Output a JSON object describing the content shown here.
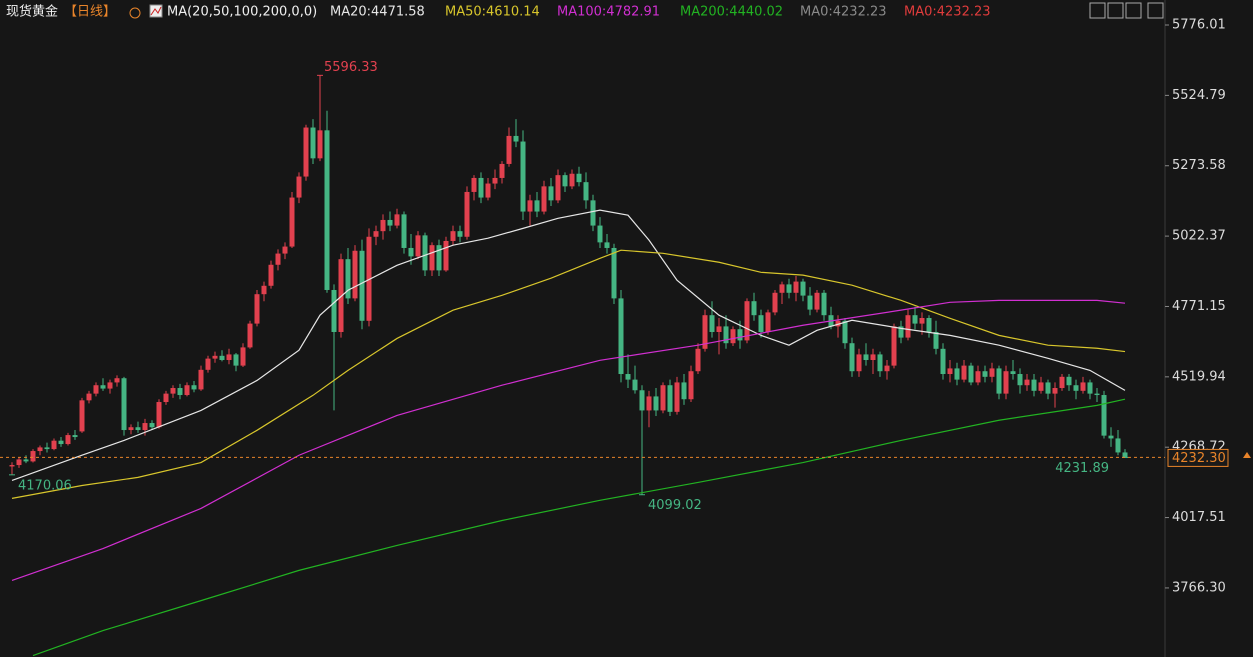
{
  "chart_data": {
    "type": "candlestick",
    "title": "现货黄金",
    "period": "【日线】",
    "indicator": "MA(20,50,100,200,0,0)",
    "up_color": "#e2414f",
    "down_color": "#45b583",
    "ylim": [
      3519.7,
      5865.3
    ],
    "yticks": [
      5776.01,
      5524.79,
      5273.58,
      5022.37,
      4771.15,
      4519.94,
      4268.72,
      4017.51,
      {
        "value": 3766.3,
        "label": "3766.30"
      }
    ],
    "last_price": {
      "value": 4232.3,
      "label": "4232.30"
    },
    "ohlc": [
      [
        4200,
        4215,
        4170.06,
        4205
      ],
      [
        4205,
        4232,
        4195,
        4225
      ],
      [
        4225,
        4240,
        4212,
        4218
      ],
      [
        4218,
        4262,
        4214,
        4255
      ],
      [
        4255,
        4275,
        4240,
        4268
      ],
      [
        4268,
        4285,
        4250,
        4262
      ],
      [
        4262,
        4300,
        4258,
        4292
      ],
      [
        4292,
        4305,
        4270,
        4280
      ],
      [
        4280,
        4320,
        4275,
        4312
      ],
      [
        4312,
        4330,
        4295,
        4305
      ],
      [
        4325,
        4445,
        4320,
        4436
      ],
      [
        4436,
        4470,
        4425,
        4460
      ],
      [
        4460,
        4500,
        4450,
        4490
      ],
      [
        4490,
        4515,
        4470,
        4478
      ],
      [
        4478,
        4510,
        4460,
        4500
      ],
      [
        4500,
        4525,
        4485,
        4515
      ],
      [
        4515,
        4520,
        4310,
        4330
      ],
      [
        4330,
        4350,
        4315,
        4340
      ],
      [
        4340,
        4360,
        4320,
        4330
      ],
      [
        4330,
        4370,
        4310,
        4355
      ],
      [
        4355,
        4365,
        4330,
        4340
      ],
      [
        4340,
        4440,
        4335,
        4430
      ],
      [
        4430,
        4470,
        4420,
        4460
      ],
      [
        4460,
        4490,
        4445,
        4480
      ],
      [
        4480,
        4495,
        4440,
        4455
      ],
      [
        4455,
        4500,
        4450,
        4490
      ],
      [
        4490,
        4505,
        4465,
        4475
      ],
      [
        4475,
        4560,
        4470,
        4545
      ],
      [
        4545,
        4595,
        4535,
        4585
      ],
      [
        4585,
        4610,
        4570,
        4595
      ],
      [
        4595,
        4615,
        4575,
        4580
      ],
      [
        4580,
        4620,
        4565,
        4600
      ],
      [
        4600,
        4605,
        4540,
        4560
      ],
      [
        4560,
        4640,
        4555,
        4625
      ],
      [
        4625,
        4720,
        4620,
        4710
      ],
      [
        4710,
        4830,
        4700,
        4815
      ],
      [
        4815,
        4860,
        4790,
        4845
      ],
      [
        4845,
        4935,
        4835,
        4920
      ],
      [
        4920,
        4975,
        4900,
        4960
      ],
      [
        4960,
        5000,
        4940,
        4985
      ],
      [
        4985,
        5180,
        4980,
        5160
      ],
      [
        5160,
        5250,
        5140,
        5235
      ],
      [
        5235,
        5420,
        5220,
        5410
      ],
      [
        5410,
        5440,
        5280,
        5300
      ],
      [
        5300,
        5596.33,
        5290,
        5400
      ],
      [
        5400,
        5470,
        4820,
        4830
      ],
      [
        4830,
        4850,
        4400,
        4680
      ],
      [
        4680,
        4960,
        4660,
        4940
      ],
      [
        4940,
        4980,
        4780,
        4800
      ],
      [
        4800,
        4990,
        4790,
        4970
      ],
      [
        4970,
        5010,
        4690,
        4720
      ],
      [
        4720,
        5050,
        4700,
        5020
      ],
      [
        5020,
        5060,
        4990,
        5040
      ],
      [
        5040,
        5100,
        5010,
        5080
      ],
      [
        5080,
        5110,
        5040,
        5060
      ],
      [
        5060,
        5120,
        5050,
        5100
      ],
      [
        5100,
        5110,
        4960,
        4980
      ],
      [
        4980,
        5030,
        4920,
        4950
      ],
      [
        4950,
        5040,
        4940,
        5025
      ],
      [
        5025,
        5035,
        4880,
        4900
      ],
      [
        4900,
        5000,
        4880,
        4990
      ],
      [
        4990,
        5010,
        4880,
        4900
      ],
      [
        4900,
        5020,
        4895,
        5005
      ],
      [
        5005,
        5060,
        4990,
        5040
      ],
      [
        5040,
        5060,
        5000,
        5020
      ],
      [
        5020,
        5200,
        5010,
        5180
      ],
      [
        5180,
        5240,
        5150,
        5230
      ],
      [
        5230,
        5250,
        5140,
        5160
      ],
      [
        5160,
        5230,
        5150,
        5210
      ],
      [
        5210,
        5260,
        5190,
        5230
      ],
      [
        5230,
        5290,
        5210,
        5280
      ],
      [
        5280,
        5410,
        5270,
        5380
      ],
      [
        5380,
        5440,
        5340,
        5360
      ],
      [
        5360,
        5400,
        5080,
        5110
      ],
      [
        5110,
        5170,
        5060,
        5150
      ],
      [
        5150,
        5180,
        5090,
        5110
      ],
      [
        5110,
        5220,
        5100,
        5200
      ],
      [
        5200,
        5230,
        5130,
        5150
      ],
      [
        5150,
        5260,
        5140,
        5240
      ],
      [
        5240,
        5250,
        5180,
        5200
      ],
      [
        5200,
        5260,
        5190,
        5245
      ],
      [
        5245,
        5270,
        5200,
        5215
      ],
      [
        5215,
        5250,
        5120,
        5150
      ],
      [
        5150,
        5170,
        5040,
        5060
      ],
      [
        5060,
        5090,
        4980,
        5000
      ],
      [
        5000,
        5030,
        4960,
        4980
      ],
      [
        4980,
        4995,
        4780,
        4800
      ],
      [
        4800,
        4830,
        4500,
        4530
      ],
      [
        4530,
        4600,
        4480,
        4510
      ],
      [
        4510,
        4560,
        4460,
        4472
      ],
      [
        4472,
        4490,
        4099.02,
        4400
      ],
      [
        4400,
        4470,
        4340,
        4450
      ],
      [
        4450,
        4480,
        4380,
        4400
      ],
      [
        4400,
        4500,
        4390,
        4490
      ],
      [
        4490,
        4510,
        4380,
        4395
      ],
      [
        4395,
        4520,
        4385,
        4500
      ],
      [
        4500,
        4530,
        4420,
        4440
      ],
      [
        4440,
        4560,
        4430,
        4540
      ],
      [
        4540,
        4640,
        4530,
        4620
      ],
      [
        4620,
        4760,
        4610,
        4740
      ],
      [
        4740,
        4790,
        4660,
        4680
      ],
      [
        4680,
        4730,
        4600,
        4700
      ],
      [
        4700,
        4740,
        4620,
        4640
      ],
      [
        4640,
        4700,
        4630,
        4690
      ],
      [
        4690,
        4720,
        4620,
        4650
      ],
      [
        4650,
        4800,
        4640,
        4790
      ],
      [
        4790,
        4820,
        4720,
        4740
      ],
      [
        4740,
        4760,
        4660,
        4680
      ],
      [
        4680,
        4760,
        4670,
        4750
      ],
      [
        4750,
        4830,
        4740,
        4820
      ],
      [
        4820,
        4860,
        4780,
        4850
      ],
      [
        4850,
        4870,
        4800,
        4820
      ],
      [
        4820,
        4880,
        4790,
        4860
      ],
      [
        4860,
        4870,
        4790,
        4810
      ],
      [
        4810,
        4840,
        4740,
        4760
      ],
      [
        4760,
        4830,
        4750,
        4820
      ],
      [
        4820,
        4830,
        4720,
        4740
      ],
      [
        4740,
        4770,
        4690,
        4700
      ],
      [
        4700,
        4740,
        4660,
        4720
      ],
      [
        4720,
        4730,
        4620,
        4640
      ],
      [
        4640,
        4660,
        4520,
        4540
      ],
      [
        4540,
        4620,
        4520,
        4600
      ],
      [
        4600,
        4640,
        4560,
        4580
      ],
      [
        4580,
        4620,
        4530,
        4600
      ],
      [
        4600,
        4610,
        4520,
        4540
      ],
      [
        4540,
        4580,
        4510,
        4560
      ],
      [
        4560,
        4710,
        4550,
        4700
      ],
      [
        4700,
        4720,
        4640,
        4660
      ],
      [
        4660,
        4760,
        4650,
        4740
      ],
      [
        4740,
        4770,
        4690,
        4710
      ],
      [
        4710,
        4750,
        4670,
        4730
      ],
      [
        4730,
        4740,
        4660,
        4680
      ],
      [
        4680,
        4720,
        4600,
        4620
      ],
      [
        4620,
        4640,
        4510,
        4530
      ],
      [
        4530,
        4580,
        4500,
        4550
      ],
      [
        4550,
        4570,
        4490,
        4510
      ],
      [
        4510,
        4580,
        4500,
        4560
      ],
      [
        4560,
        4570,
        4490,
        4500
      ],
      [
        4500,
        4560,
        4490,
        4540
      ],
      [
        4540,
        4560,
        4500,
        4520
      ],
      [
        4520,
        4570,
        4500,
        4550
      ],
      [
        4550,
        4560,
        4440,
        4460
      ],
      [
        4460,
        4560,
        4440,
        4540
      ],
      [
        4540,
        4580,
        4510,
        4530
      ],
      [
        4530,
        4550,
        4460,
        4490
      ],
      [
        4490,
        4530,
        4470,
        4510
      ],
      [
        4510,
        4530,
        4450,
        4470
      ],
      [
        4470,
        4520,
        4460,
        4500
      ],
      [
        4500,
        4510,
        4440,
        4460
      ],
      [
        4460,
        4500,
        4410,
        4480
      ],
      [
        4480,
        4530,
        4470,
        4520
      ],
      [
        4520,
        4530,
        4470,
        4490
      ],
      [
        4490,
        4510,
        4440,
        4470
      ],
      [
        4470,
        4520,
        4460,
        4500
      ],
      [
        4500,
        4510,
        4440,
        4460
      ],
      [
        4460,
        4480,
        4430,
        4455
      ],
      [
        4455,
        4470,
        4300,
        4310
      ],
      [
        4310,
        4340,
        4270,
        4300
      ],
      [
        4300,
        4330,
        4240,
        4250
      ],
      [
        4250,
        4262,
        4231.89,
        4232.3
      ]
    ],
    "series": [
      {
        "name": "MA20:4471.58",
        "color": "#e6e6e6",
        "x": [
          0,
          10,
          16,
          27,
          35,
          41,
          44,
          48,
          55,
          63,
          68,
          73,
          78,
          84,
          88,
          91,
          95,
          101,
          107,
          111,
          115,
          120,
          127,
          134,
          141,
          148,
          154,
          159
        ],
        "values": [
          4150,
          4240,
          4293,
          4400,
          4507,
          4615,
          4740,
          4829,
          4918,
          4990,
          5015,
          5050,
          5086,
          5115,
          5097,
          5008,
          4865,
          4740,
          4668,
          4633,
          4686,
          4722,
          4693,
          4668,
          4633,
          4586,
          4543,
          4471.58
        ]
      },
      {
        "name": "MA50:4610.14",
        "color": "#d8c62c",
        "x": [
          0,
          10,
          18,
          27,
          35,
          43,
          48,
          55,
          63,
          70,
          77,
          84,
          87,
          93,
          101,
          107,
          113,
          120,
          127,
          134,
          141,
          148,
          155,
          159
        ],
        "values": [
          4086,
          4132,
          4161,
          4214,
          4329,
          4454,
          4543,
          4657,
          4758,
          4811,
          4872,
          4943,
          4972,
          4961,
          4929,
          4893,
          4883,
          4847,
          4793,
          4729,
          4668,
          4633,
          4622,
          4610.14
        ]
      },
      {
        "name": "MA100:4782.91",
        "color": "#d12fd1",
        "x": [
          0,
          13,
          27,
          41,
          55,
          70,
          84,
          98,
          113,
          127,
          134,
          141,
          148,
          155,
          159
        ],
        "values": [
          3793,
          3907,
          4050,
          4240,
          4382,
          4490,
          4579,
          4633,
          4704,
          4758,
          4786,
          4793,
          4793,
          4793,
          4782.91
        ]
      },
      {
        "name": "MA200:4440.02",
        "color": "#22b322",
        "x": [
          3,
          13,
          27,
          41,
          55,
          70,
          84,
          98,
          113,
          127,
          141,
          155,
          159
        ],
        "values": [
          3525,
          3614,
          3721,
          3829,
          3918,
          4007,
          4079,
          4143,
          4214,
          4293,
          4365,
          4418,
          4440.02
        ]
      }
    ],
    "extra_legend": [
      {
        "name": "MA0:4232.23",
        "color": "#8a8a8a"
      },
      {
        "name": "MA0:4232.23",
        "color": "#e03c3c"
      }
    ]
  }
}
